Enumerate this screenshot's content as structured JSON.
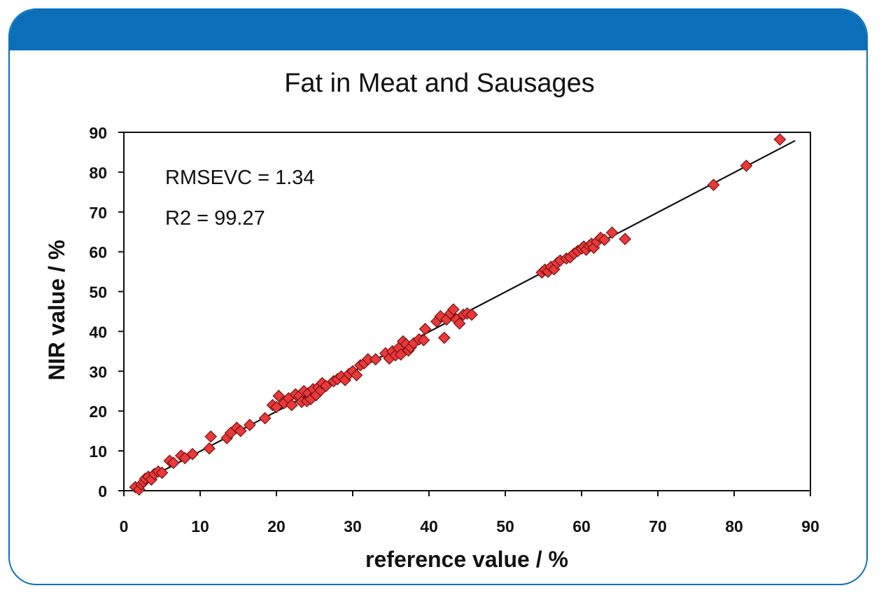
{
  "colors": {
    "frame": "#0a6fb8",
    "marker_fill": "#e8393b",
    "marker_stroke": "#7a1010",
    "fit_line": "#111111"
  },
  "chart_data": {
    "type": "scatter",
    "title": "Fat in Meat and Sausages",
    "xlabel": "reference value / %",
    "ylabel": "NIR value / %",
    "xlim": [
      0,
      90
    ],
    "ylim": [
      0,
      90
    ],
    "xticks": [
      "0",
      "10",
      "20",
      "30",
      "40",
      "50",
      "60",
      "70",
      "80",
      "90"
    ],
    "yticks": [
      "0",
      "10",
      "20",
      "30",
      "40",
      "50",
      "60",
      "70",
      "80",
      "90"
    ],
    "grid": false,
    "annotations": [
      "RMSEVC = 1.34",
      "R2 = 99.27"
    ],
    "trendline": {
      "x": [
        1,
        88
      ],
      "y": [
        0.9,
        87.9
      ]
    },
    "series": [
      {
        "marker": "diamond",
        "points": [
          [
            1.5,
            0.9
          ],
          [
            2.0,
            0.3
          ],
          [
            2.3,
            1.6
          ],
          [
            2.6,
            2.2
          ],
          [
            2.8,
            3.0
          ],
          [
            3.2,
            3.5
          ],
          [
            3.6,
            2.8
          ],
          [
            4.0,
            4.2
          ],
          [
            4.5,
            4.8
          ],
          [
            5.0,
            4.5
          ],
          [
            6.0,
            7.5
          ],
          [
            6.5,
            7.0
          ],
          [
            7.5,
            8.8
          ],
          [
            8.0,
            8.2
          ],
          [
            9.0,
            9.2
          ],
          [
            11.2,
            10.6
          ],
          [
            11.4,
            13.6
          ],
          [
            13.5,
            13.2
          ],
          [
            14.0,
            14.5
          ],
          [
            14.8,
            15.8
          ],
          [
            15.3,
            15.0
          ],
          [
            16.5,
            16.5
          ],
          [
            18.5,
            18.2
          ],
          [
            19.5,
            21.5
          ],
          [
            20.0,
            21.0
          ],
          [
            20.3,
            23.8
          ],
          [
            21.0,
            22.0
          ],
          [
            21.6,
            23.2
          ],
          [
            22.0,
            21.5
          ],
          [
            22.5,
            24.2
          ],
          [
            23.0,
            23.8
          ],
          [
            23.3,
            22.3
          ],
          [
            23.6,
            25.0
          ],
          [
            24.0,
            22.5
          ],
          [
            24.2,
            24.5
          ],
          [
            24.5,
            23.0
          ],
          [
            24.8,
            25.5
          ],
          [
            25.2,
            24.0
          ],
          [
            25.5,
            26.0
          ],
          [
            25.8,
            25.2
          ],
          [
            26.0,
            27.0
          ],
          [
            26.5,
            26.3
          ],
          [
            27.5,
            27.5
          ],
          [
            28.0,
            28.0
          ],
          [
            28.5,
            28.7
          ],
          [
            29.0,
            27.8
          ],
          [
            29.5,
            29.3
          ],
          [
            30.0,
            30.0
          ],
          [
            30.5,
            29.0
          ],
          [
            31.0,
            31.5
          ],
          [
            31.5,
            32.0
          ],
          [
            32.0,
            33.0
          ],
          [
            33.0,
            33.0
          ],
          [
            34.3,
            34.5
          ],
          [
            34.8,
            33.2
          ],
          [
            35.2,
            35.0
          ],
          [
            35.6,
            34.0
          ],
          [
            36.0,
            35.8
          ],
          [
            36.3,
            34.2
          ],
          [
            36.6,
            37.5
          ],
          [
            37.0,
            36.8
          ],
          [
            37.3,
            35.2
          ],
          [
            37.6,
            36.0
          ],
          [
            38.0,
            37.0
          ],
          [
            38.7,
            38.0
          ],
          [
            39.3,
            37.8
          ],
          [
            39.5,
            40.6
          ],
          [
            41.0,
            42.5
          ],
          [
            41.5,
            43.8
          ],
          [
            42.0,
            38.4
          ],
          [
            42.3,
            43.0
          ],
          [
            42.8,
            44.5
          ],
          [
            43.2,
            45.5
          ],
          [
            43.6,
            43.0
          ],
          [
            44.0,
            42.0
          ],
          [
            44.5,
            44.2
          ],
          [
            45.0,
            44.5
          ],
          [
            45.6,
            44.2
          ],
          [
            54.8,
            54.8
          ],
          [
            55.2,
            55.5
          ],
          [
            55.6,
            55.0
          ],
          [
            56.0,
            56.2
          ],
          [
            56.4,
            55.6
          ],
          [
            56.8,
            57.2
          ],
          [
            57.2,
            57.8
          ],
          [
            58.0,
            58.3
          ],
          [
            58.5,
            58.6
          ],
          [
            59.0,
            59.5
          ],
          [
            59.5,
            60.2
          ],
          [
            60.0,
            60.8
          ],
          [
            60.3,
            61.3
          ],
          [
            60.6,
            60.5
          ],
          [
            61.0,
            61.5
          ],
          [
            61.3,
            62.0
          ],
          [
            61.6,
            61.0
          ],
          [
            62.0,
            62.5
          ],
          [
            62.5,
            63.5
          ],
          [
            63.0,
            63.0
          ],
          [
            64.0,
            64.8
          ],
          [
            65.7,
            63.2
          ],
          [
            77.3,
            76.8
          ],
          [
            81.6,
            81.6
          ],
          [
            86.0,
            88.2
          ]
        ]
      }
    ]
  }
}
